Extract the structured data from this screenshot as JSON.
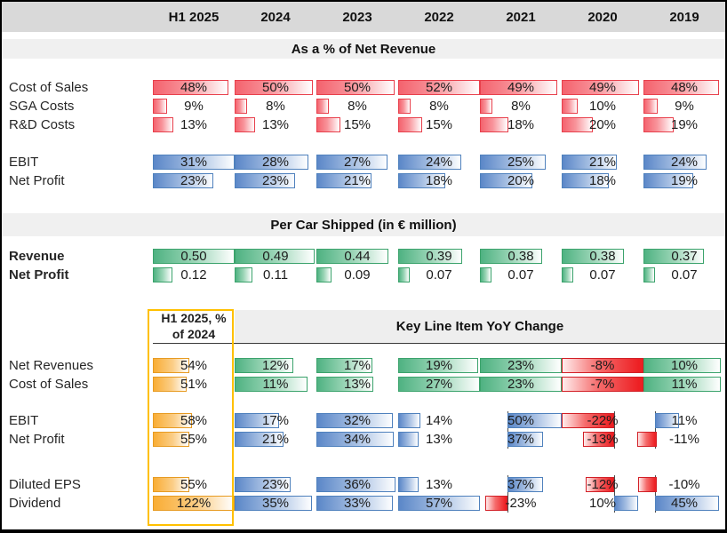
{
  "colors": {
    "positive_cost_bar": "#f4636e",
    "cost_border": "#e8404c",
    "profit_bar": "#5b87c8",
    "profit_border": "#4f81bd",
    "per_car_bar": "#4fb282",
    "per_car_border": "#3ba36c",
    "h1_bar": "#f9ad35",
    "h1_border": "#e79b22",
    "negative_bar": "#ed2024",
    "highlight_box": "#ffc000",
    "header_bg": "#d9d9d9",
    "band_bg": "#f0f0f0"
  },
  "chart_data": {
    "type": "table",
    "subtype": "data-bar-table",
    "columns": [
      "H1 2025",
      "2024",
      "2023",
      "2022",
      "2021",
      "2020",
      "2019"
    ],
    "sections": [
      {
        "title": "As a % of Net Revenue",
        "format": "percent",
        "groups": [
          {
            "style": "red",
            "scale_max": 52,
            "rows": [
              {
                "label": "Cost of Sales",
                "values": [
                  48,
                  50,
                  50,
                  52,
                  49,
                  49,
                  48
                ]
              },
              {
                "label": "SGA Costs",
                "values": [
                  9,
                  8,
                  8,
                  8,
                  8,
                  10,
                  9
                ]
              },
              {
                "label": "R&D Costs",
                "values": [
                  13,
                  13,
                  15,
                  15,
                  18,
                  20,
                  19
                ]
              }
            ]
          },
          {
            "style": "blue",
            "scale_max": 31,
            "rows": [
              {
                "label": "EBIT",
                "values": [
                  31,
                  28,
                  27,
                  24,
                  25,
                  21,
                  24
                ]
              },
              {
                "label": "Net Profit",
                "values": [
                  23,
                  23,
                  21,
                  18,
                  20,
                  18,
                  19
                ]
              }
            ]
          }
        ]
      },
      {
        "title": "Per Car Shipped (in € million)",
        "format": "decimal2",
        "groups": [
          {
            "style": "green",
            "scale_max": 0.5,
            "bold_labels": true,
            "rows": [
              {
                "label": "Revenue",
                "values": [
                  0.5,
                  0.49,
                  0.44,
                  0.39,
                  0.38,
                  0.38,
                  0.37
                ]
              },
              {
                "label": "Net Profit",
                "values": [
                  0.12,
                  0.11,
                  0.09,
                  0.07,
                  0.07,
                  0.07,
                  0.07
                ]
              }
            ]
          }
        ]
      },
      {
        "h1_column_header": "H1 2025, % of 2024",
        "title": "Key Line Item YoY Change",
        "format": "percent",
        "h1_scale_max": 122,
        "yoy_columns": [
          "2024",
          "2023",
          "2022",
          "2021",
          "2020",
          "2019"
        ],
        "groups": [
          {
            "style": "green",
            "rows": [
              {
                "label": "Net Revenues",
                "h1": 54,
                "values": [
                  12,
                  17,
                  19,
                  23,
                  -8,
                  10
                ],
                "bars": [
                  {
                    "w": 0.72
                  },
                  {
                    "w": 0.68
                  },
                  {
                    "w": 0.98
                  },
                  {
                    "w": 1
                  },
                  {
                    "w": 1
                  },
                  {
                    "w": 0.95
                  }
                ]
              },
              {
                "label": "Cost of Sales",
                "h1": 51,
                "values": [
                  11,
                  13,
                  27,
                  23,
                  -7,
                  11
                ],
                "bars": [
                  {
                    "w": 0.89
                  },
                  {
                    "w": 0.7
                  },
                  {
                    "w": 1
                  },
                  {
                    "w": 1
                  },
                  {
                    "w": 1
                  },
                  {
                    "w": 0.95
                  }
                ]
              }
            ]
          },
          {
            "style": "blue",
            "rows": [
              {
                "label": "EBIT",
                "h1": 58,
                "values": [
                  17,
                  32,
                  14,
                  50,
                  -22,
                  11
                ],
                "bars": [
                  {
                    "w": 0.54
                  },
                  {
                    "w": 0.93
                  },
                  {
                    "w": 0.27
                  },
                  {
                    "w": 0.66,
                    "x": 0.34,
                    "axis": 0.34
                  },
                  {
                    "w": 0.64,
                    "x": 0,
                    "axis": 0.64
                  },
                  {
                    "w": 0.29,
                    "x": 0.14,
                    "axis": 0.14
                  }
                ]
              },
              {
                "label": "Net Profit",
                "h1": 55,
                "values": [
                  21,
                  34,
                  13,
                  37,
                  -13,
                  -11
                ],
                "bars": [
                  {
                    "w": 0.6
                  },
                  {
                    "w": 0.95
                  },
                  {
                    "w": 0.25
                  },
                  {
                    "w": 0.43,
                    "x": 0.34,
                    "axis": 0.34
                  },
                  {
                    "w": 0.38,
                    "x": 0.26,
                    "axis": 0.64
                  },
                  {
                    "w": 0.24,
                    "x": -0.08,
                    "axis": 0.14
                  }
                ]
              }
            ]
          },
          {
            "style": "blue",
            "rows": [
              {
                "label": "Diluted EPS",
                "h1": 55,
                "values": [
                  23,
                  36,
                  13,
                  37,
                  -12,
                  -10
                ],
                "bars": [
                  {
                    "w": 0.68
                  },
                  {
                    "w": 0.97
                  },
                  {
                    "w": 0.25
                  },
                  {
                    "w": 0.43,
                    "x": 0.34,
                    "axis": 0.34
                  },
                  {
                    "w": 0.35,
                    "x": 0.29,
                    "axis": 0.64
                  },
                  {
                    "w": 0.22,
                    "x": -0.06,
                    "axis": 0.14
                  }
                ]
              },
              {
                "label": "Dividend",
                "h1": 122,
                "values": [
                  35,
                  33,
                  57,
                  -23,
                  10,
                  45
                ],
                "bars": [
                  {
                    "w": 0.95
                  },
                  {
                    "w": 0.93
                  },
                  {
                    "w": 1
                  },
                  {
                    "w": 0.28,
                    "x": 0.06,
                    "axis": 0.34
                  },
                  {
                    "w": 0.29,
                    "x": 0.64,
                    "axis": 0.64
                  },
                  {
                    "w": 0.78,
                    "x": 0.14,
                    "axis": 0.14
                  }
                ]
              }
            ]
          }
        ]
      }
    ]
  }
}
